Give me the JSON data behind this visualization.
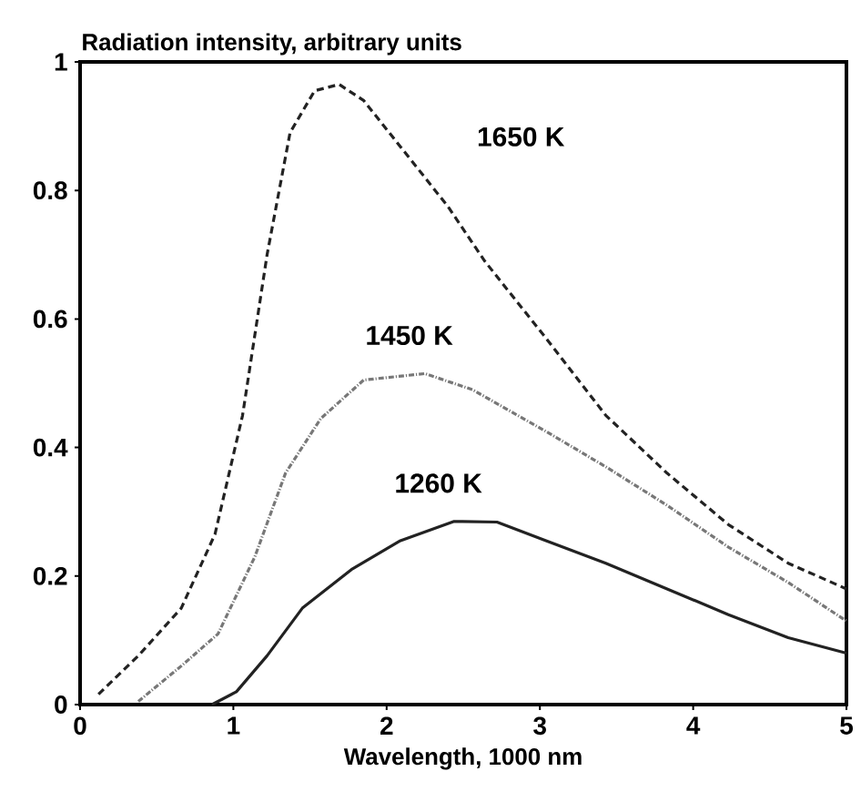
{
  "chart_data": {
    "type": "line",
    "ylabel": "Radiation intensity, arbitrary units",
    "xlabel": "Wavelength, 1000 nm",
    "xlim": [
      0,
      5
    ],
    "ylim": [
      0,
      1
    ],
    "xticks": [
      0,
      1,
      2,
      3,
      4,
      5
    ],
    "yticks": [
      0,
      0.2,
      0.4,
      0.6,
      0.8,
      1
    ],
    "grid": false,
    "marker": "none",
    "series": [
      {
        "name": "1650 K",
        "color": "#222222",
        "line_style": "dashed",
        "x": [
          0.12,
          0.38,
          0.66,
          0.88,
          1.06,
          1.22,
          1.37,
          1.53,
          1.69,
          1.85,
          2.05,
          2.4,
          2.64,
          3.04,
          3.43,
          3.83,
          4.23,
          4.62,
          5.0
        ],
        "values": [
          0.016,
          0.076,
          0.15,
          0.265,
          0.45,
          0.7,
          0.89,
          0.955,
          0.965,
          0.94,
          0.88,
          0.775,
          0.69,
          0.57,
          0.45,
          0.36,
          0.28,
          0.22,
          0.18
        ]
      },
      {
        "name": "1450 K",
        "color": "#777777",
        "line_style": "dotted",
        "x": [
          0.38,
          0.66,
          0.9,
          1.14,
          1.34,
          1.57,
          1.85,
          2.25,
          2.56,
          3.04,
          3.43,
          3.83,
          4.23,
          4.62,
          5.0
        ],
        "values": [
          0.005,
          0.06,
          0.11,
          0.23,
          0.36,
          0.445,
          0.505,
          0.515,
          0.49,
          0.425,
          0.37,
          0.31,
          0.245,
          0.19,
          0.13
        ]
      },
      {
        "name": "1260 K",
        "color": "#222222",
        "line_style": "solid",
        "x": [
          0.86,
          1.02,
          1.22,
          1.45,
          1.77,
          2.09,
          2.44,
          2.72,
          3.04,
          3.43,
          3.83,
          4.23,
          4.62,
          5.0
        ],
        "values": [
          0,
          0.02,
          0.076,
          0.15,
          0.21,
          0.255,
          0.285,
          0.284,
          0.255,
          0.22,
          0.18,
          0.14,
          0.104,
          0.08
        ]
      }
    ]
  }
}
